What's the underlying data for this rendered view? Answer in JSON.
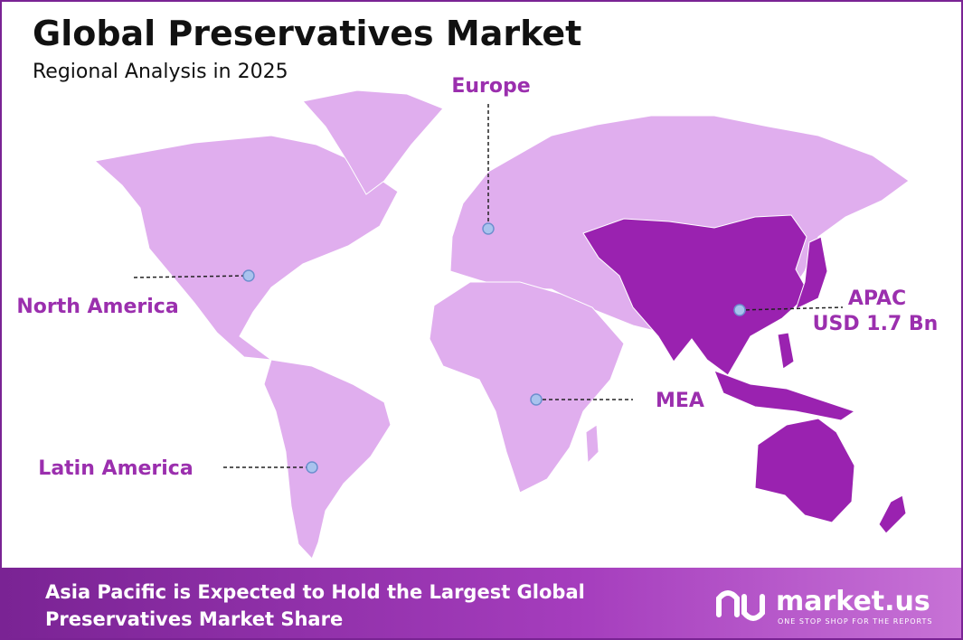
{
  "header": {
    "title": "Global Preservatives Market",
    "subtitle": "Regional Analysis in 2025"
  },
  "regions": [
    {
      "label": "Europe"
    },
    {
      "label": "North America"
    },
    {
      "label": "APAC",
      "value_label": "USD 1.7 Bn"
    },
    {
      "label": "MEA"
    },
    {
      "label": "Latin America"
    }
  ],
  "footer": {
    "text": [
      "Asia Pacific is Expected to Hold the Largest Global",
      "Preservatives Market Share"
    ],
    "logo": "market.us",
    "tagline": "ONE STOP SHOP FOR THE REPORTS"
  }
}
